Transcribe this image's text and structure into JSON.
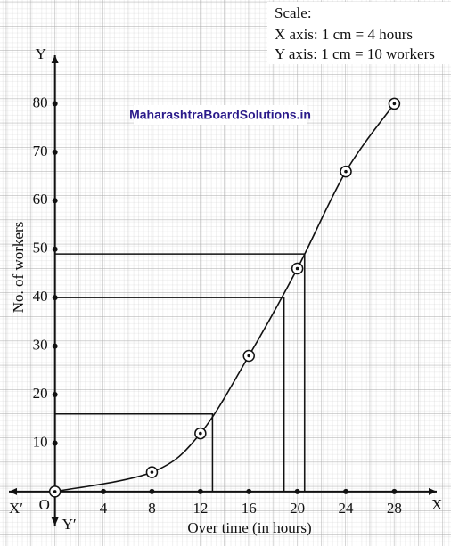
{
  "chart_data": {
    "type": "ogive",
    "scale_title": "Scale:",
    "scale_x": "X axis: 1 cm = 4 hours",
    "scale_y": "Y axis: 1 cm = 10 workers",
    "watermark": "MaharashtraBoardSolutions.in",
    "x_label": "Over time (in hours)",
    "y_label": "No. of workers",
    "origin_label": "O",
    "x_axis_label": "X",
    "x_axis_neg_label": "X′",
    "y_axis_label": "Y",
    "y_axis_neg_label": "Y′",
    "xlim": [
      -3.8,
      31.5
    ],
    "ylim": [
      -7,
      90
    ],
    "xticks": [
      4,
      8,
      12,
      16,
      20,
      24,
      28
    ],
    "yticks": [
      10,
      20,
      30,
      40,
      50,
      60,
      70,
      80
    ],
    "x": [
      0,
      8,
      12,
      16,
      20,
      24,
      28
    ],
    "values": [
      0,
      4,
      12,
      28,
      46,
      66,
      80
    ],
    "color": "#111111",
    "guides": [
      {
        "x": 13,
        "y": 16
      },
      {
        "x": 18.9,
        "y": 40
      },
      {
        "x": 20.6,
        "y": 49
      }
    ]
  }
}
